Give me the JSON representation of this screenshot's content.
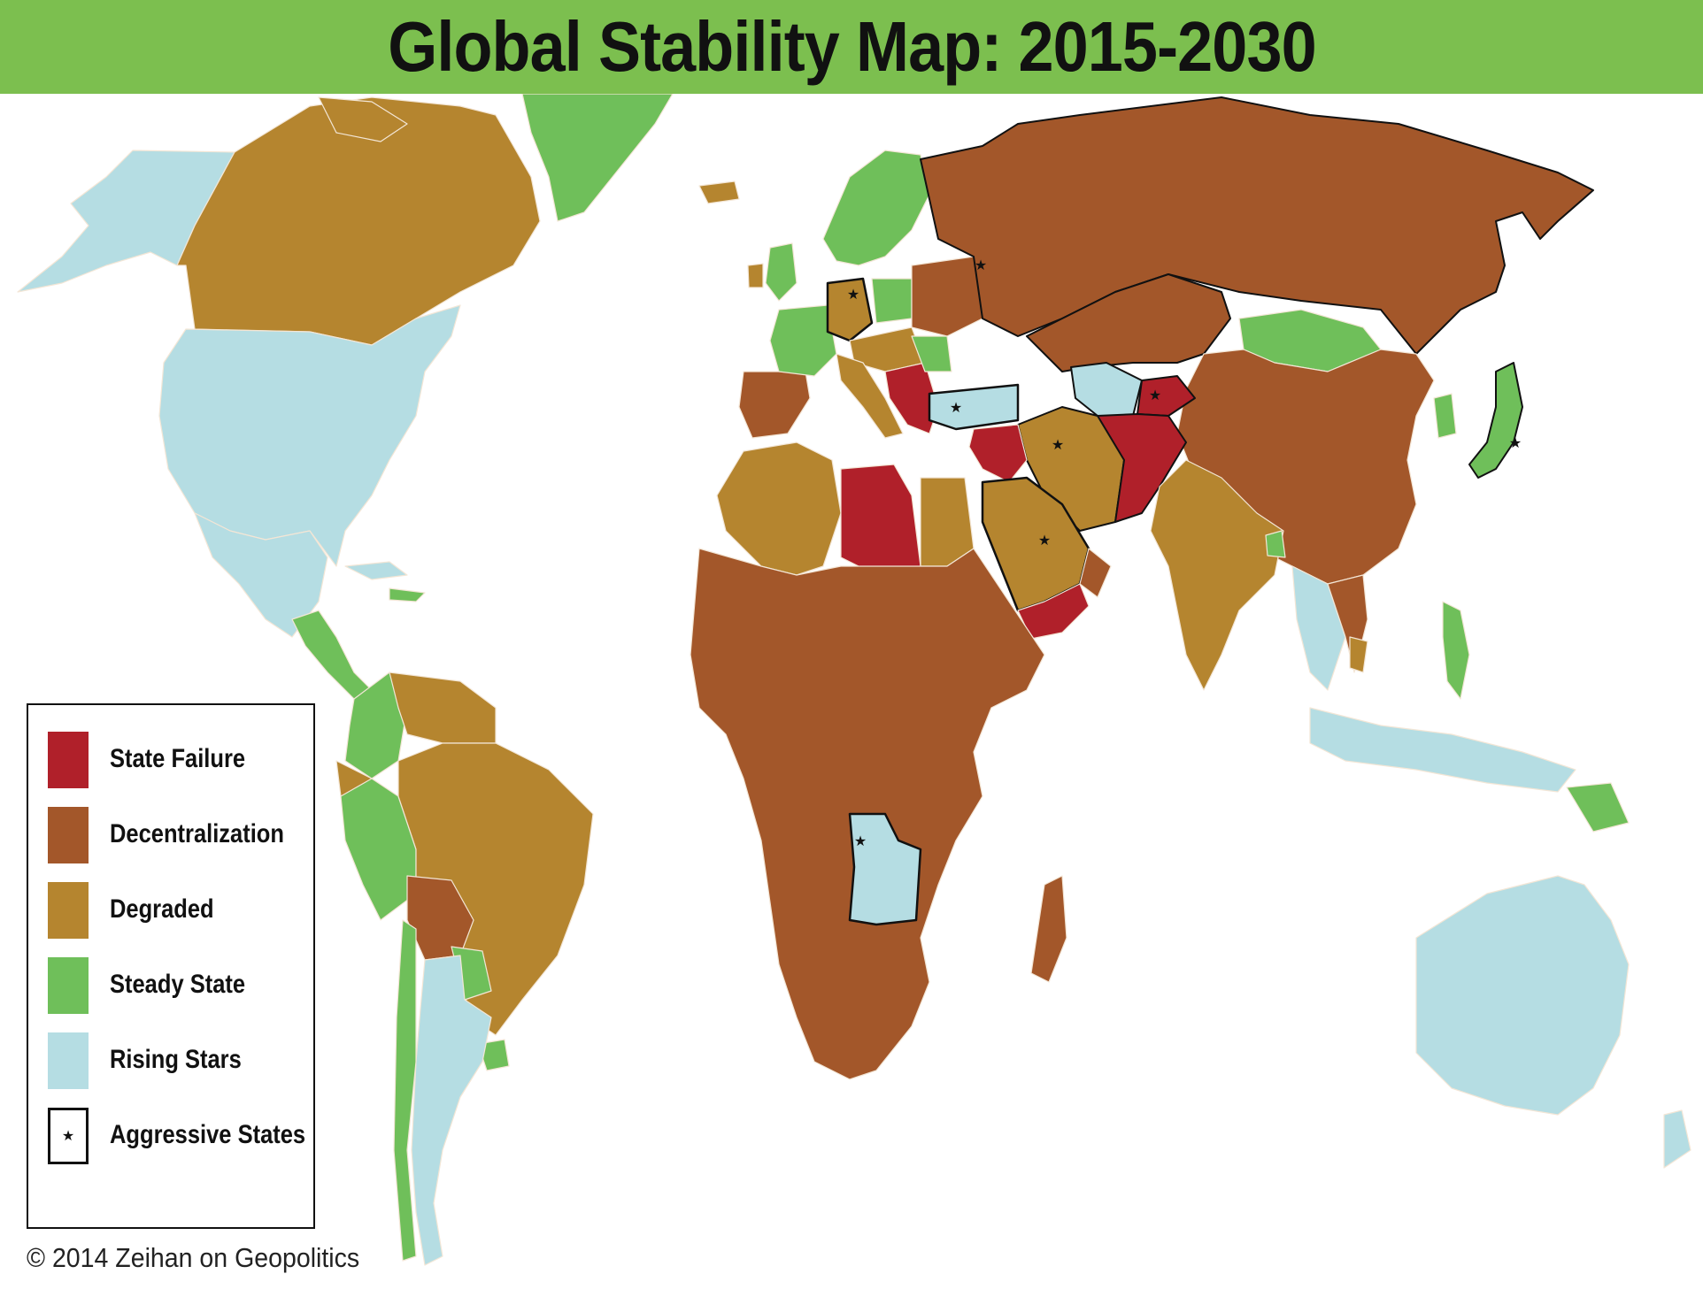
{
  "title": "Global Stability Map: 2015-2030",
  "legend": {
    "items": [
      {
        "label": "State Failure",
        "color": "#b0202a"
      },
      {
        "label": "Decentralization",
        "color": "#a3572a"
      },
      {
        "label": "Degraded",
        "color": "#b5852f"
      },
      {
        "label": "Steady State",
        "color": "#6fbf5a"
      },
      {
        "label": "Rising Stars",
        "color": "#b5dde3"
      },
      {
        "label": "Aggressive States",
        "color": "#ffffff",
        "symbol": "★"
      }
    ]
  },
  "copyright": "© 2014 Zeihan on Geopolitics",
  "colors": {
    "title_bar": "#7cbf4f",
    "state_failure": "#b0202a",
    "decentralization": "#a3572a",
    "degraded": "#b5852f",
    "steady_state": "#6fbf5a",
    "rising_stars": "#b5dde3",
    "border": "#111111"
  }
}
